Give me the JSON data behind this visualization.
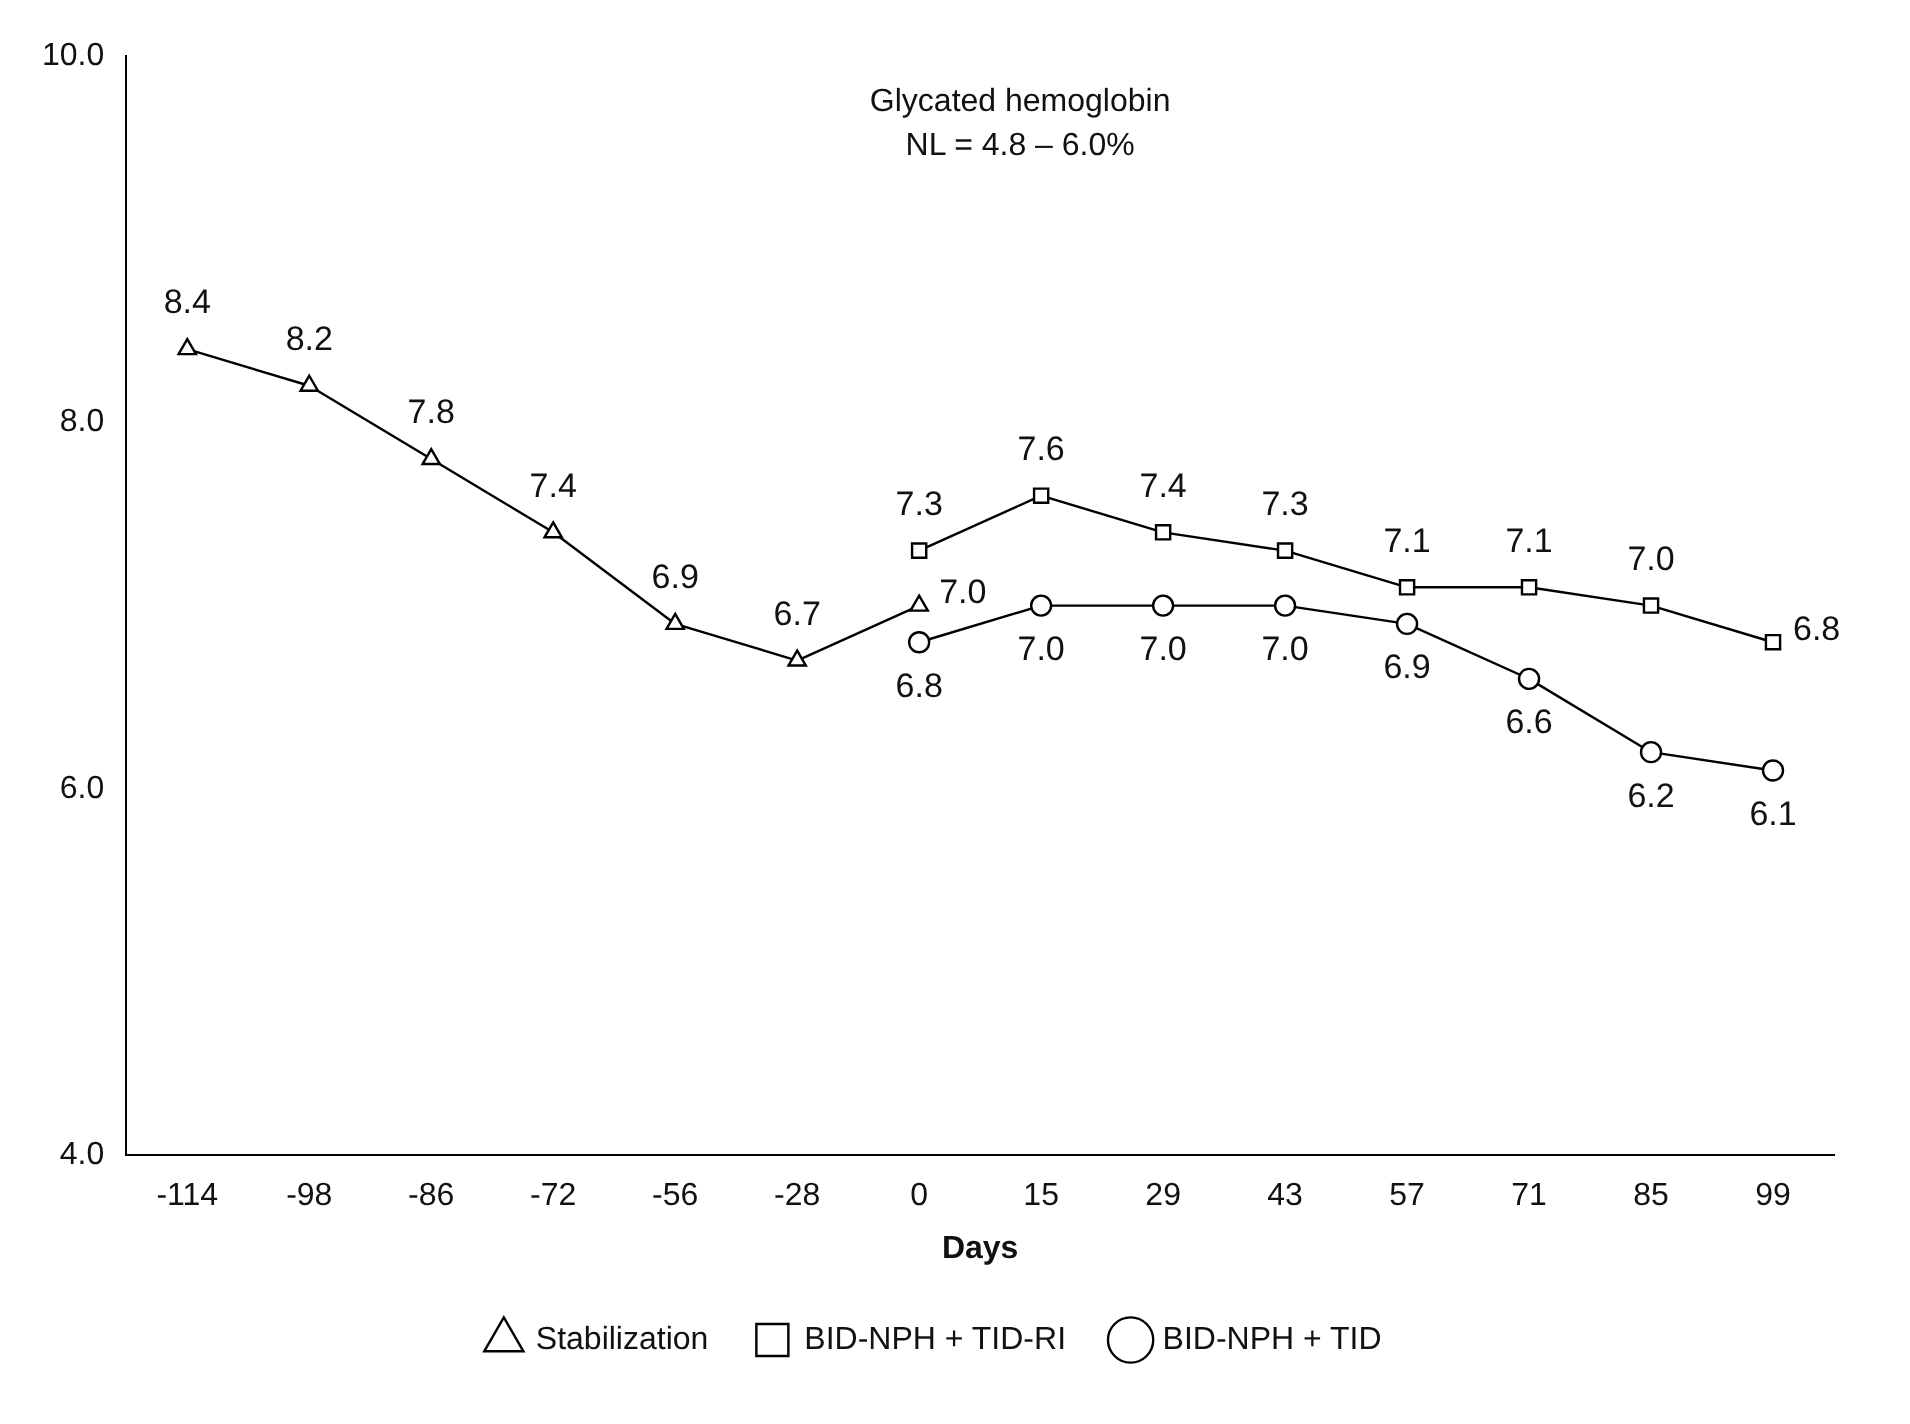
{
  "chart_data": {
    "type": "line",
    "xlabel": "Days",
    "categories": [
      "-114",
      "-98",
      "-86",
      "-72",
      "-56",
      "-28",
      "0",
      "15",
      "29",
      "43",
      "57",
      "71",
      "85",
      "99"
    ],
    "annotations": [
      "Glycated hemoglobin",
      "NL = 4.8 – 6.0%"
    ],
    "series": [
      {
        "name": "Stabilization",
        "color": "#000000",
        "marker": "triangle",
        "values": [
          8.4,
          8.2,
          7.8,
          7.4,
          6.9,
          6.7,
          7.0,
          null,
          null,
          null,
          null,
          null,
          null,
          null
        ],
        "value_labels": [
          "8.4",
          "8.2",
          "7.8",
          "7.4",
          "6.9",
          "6.7",
          "7.0",
          null,
          null,
          null,
          null,
          null,
          null,
          null
        ]
      },
      {
        "name": "BID-NPH + TID-RI",
        "color": "#000000",
        "marker": "square",
        "values": [
          null,
          null,
          null,
          null,
          null,
          null,
          7.3,
          7.6,
          7.4,
          7.3,
          7.1,
          7.1,
          7.0,
          6.8
        ],
        "value_labels": [
          null,
          null,
          null,
          null,
          null,
          null,
          "7.3",
          "7.6",
          "7.4",
          "7.3",
          "7.1",
          "7.1",
          "7.0",
          "6.8"
        ]
      },
      {
        "name": "BID-NPH + TID",
        "color": "#000000",
        "marker": "circle",
        "values": [
          null,
          null,
          null,
          null,
          null,
          null,
          6.8,
          7.0,
          7.0,
          7.0,
          6.9,
          6.6,
          6.2,
          6.1
        ],
        "value_labels": [
          null,
          null,
          null,
          null,
          null,
          null,
          "6.8",
          "7.0",
          "7.0",
          "7.0",
          "6.9",
          "6.6",
          "6.2",
          "6.1"
        ]
      }
    ],
    "ylim": [
      4.0,
      10.0
    ],
    "yticks": [
      {
        "value": 4,
        "label": "4.0"
      },
      {
        "value": 6,
        "label": "6.0"
      },
      {
        "value": 8,
        "label": "8.0"
      },
      {
        "value": 10,
        "label": "10.0"
      }
    ],
    "grid": false,
    "legend": "bottom",
    "line_style": "solid"
  }
}
